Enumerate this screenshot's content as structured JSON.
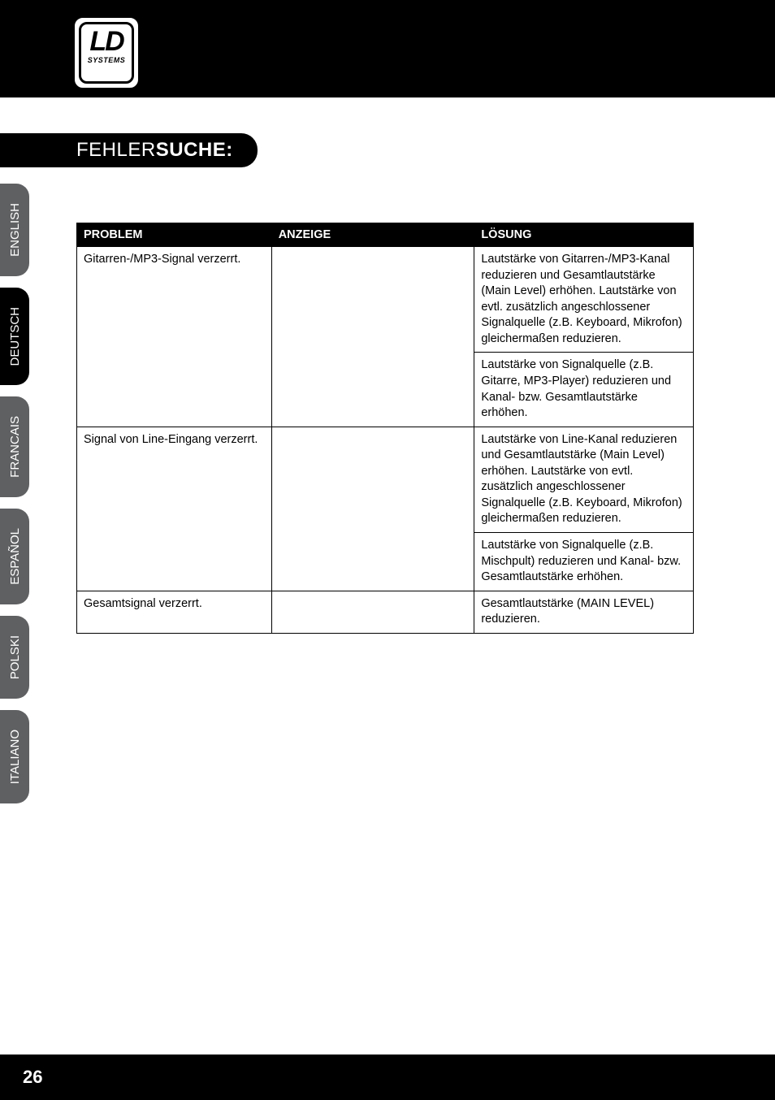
{
  "brand": {
    "main": "LD",
    "sub": "SYSTEMS"
  },
  "section_title": {
    "light": "FEHLER",
    "bold": "SUCHE:"
  },
  "languages": [
    {
      "label": "ENGLISH",
      "active": false
    },
    {
      "label": "DEUTSCH",
      "active": true
    },
    {
      "label": "FRANCAIS",
      "active": false
    },
    {
      "label": "ESPAÑOL",
      "active": false
    },
    {
      "label": "POLSKI",
      "active": false
    },
    {
      "label": "ITALIANO",
      "active": false
    }
  ],
  "table": {
    "headers": {
      "problem": "PROBLEM",
      "anzeige": "ANZEIGE",
      "loesung": "LÖSUNG"
    },
    "groups": [
      {
        "problem": "Gitarren-/MP3-Signal verzerrt.",
        "anzeige": "",
        "solutions": [
          "Lautstärke von Gitarren-/MP3-Kanal reduzieren und Gesamtlautstärke (Main Level) erhöhen. Lautstärke von evtl. zusätzlich angeschlossener Signalquelle (z.B. Keyboard, Mikrofon) gleichermaßen reduzieren.",
          "Lautstärke von Signalquelle (z.B. Gitarre, MP3-Player) reduzieren und Kanal- bzw. Gesamtlautstärke erhöhen."
        ]
      },
      {
        "problem": "Signal von Line-Eingang verzerrt.",
        "anzeige": "",
        "solutions": [
          "Lautstärke von Line-Kanal reduzieren und Gesamtlautstärke (Main Level) erhöhen. Lautstärke von evtl. zusätzlich angeschlossener Signalquelle (z.B. Keyboard, Mikrofon) gleichermaßen reduzieren.",
          "Lautstärke von Signalquelle (z.B. Mischpult) reduzieren und Kanal- bzw. Gesamtlautstärke erhöhen."
        ]
      },
      {
        "problem": "Gesamtsignal verzerrt.",
        "anzeige": "",
        "solutions": [
          "Gesamtlautstärke (MAIN LEVEL) reduzieren."
        ]
      }
    ]
  },
  "page_number": "26",
  "colors": {
    "black": "#000000",
    "white": "#ffffff",
    "tab_grey": "#5f6062"
  }
}
